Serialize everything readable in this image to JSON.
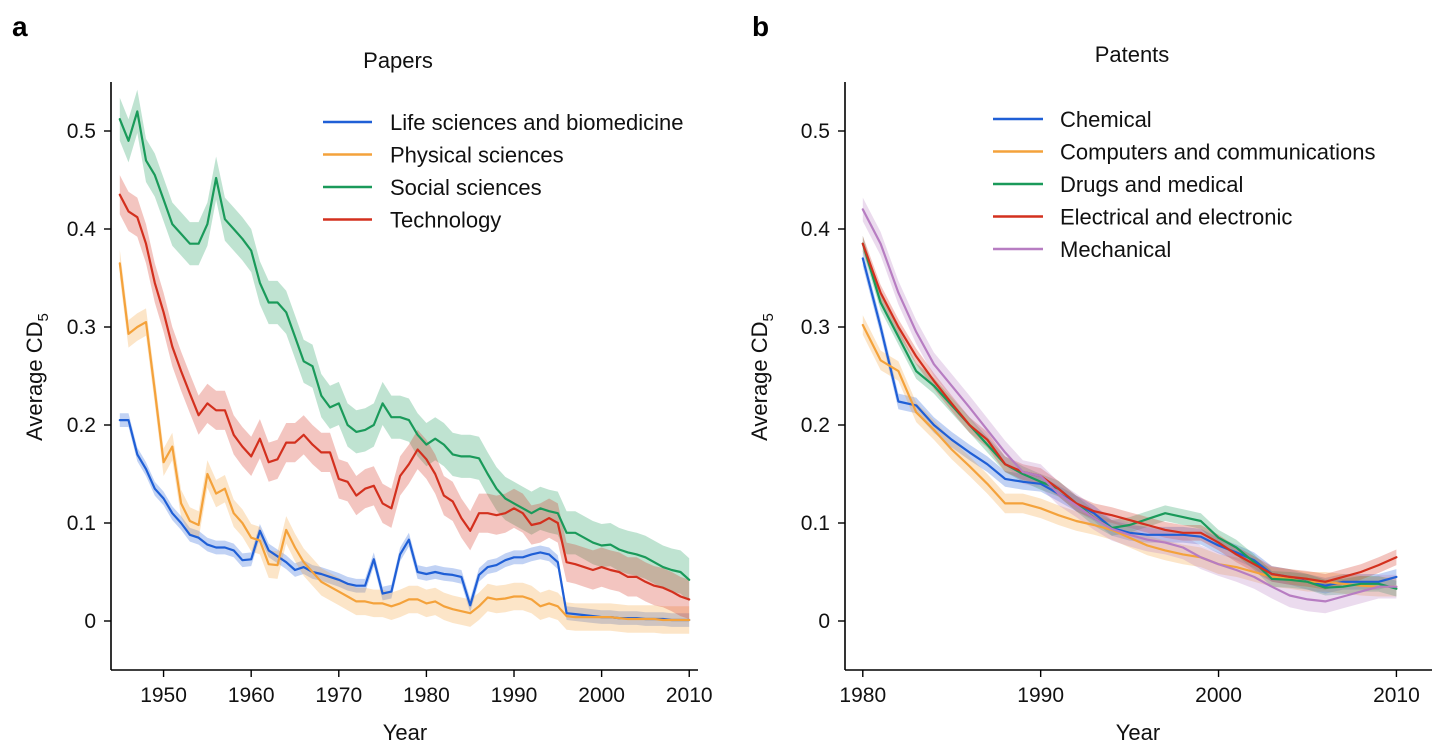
{
  "panel_letters": [
    "a",
    "b"
  ],
  "chart_data": [
    {
      "type": "line",
      "panel": "a",
      "title": "Papers",
      "xlabel": "Year",
      "ylabel": "Average CD",
      "ylabel_subscript": "5",
      "xlim": [
        1944,
        2011
      ],
      "ylim": [
        -0.05,
        0.55
      ],
      "xticks": [
        1950,
        1960,
        1970,
        1980,
        1990,
        2000,
        2010
      ],
      "yticks": [
        0,
        0.1,
        0.2,
        0.3,
        0.4,
        0.5
      ],
      "ytick_labels": [
        "0",
        "0.1",
        "0.2",
        "0.3",
        "0.4",
        "0.5"
      ],
      "legend_position": "top-right",
      "grid": false,
      "x": [
        1945,
        1946,
        1947,
        1948,
        1949,
        1950,
        1951,
        1952,
        1953,
        1954,
        1955,
        1956,
        1957,
        1958,
        1959,
        1960,
        1961,
        1962,
        1963,
        1964,
        1965,
        1966,
        1967,
        1968,
        1969,
        1970,
        1971,
        1972,
        1973,
        1974,
        1975,
        1976,
        1977,
        1978,
        1979,
        1980,
        1981,
        1982,
        1983,
        1984,
        1985,
        1986,
        1987,
        1988,
        1989,
        1990,
        1991,
        1992,
        1993,
        1994,
        1995,
        1996,
        1997,
        1998,
        1999,
        2000,
        2001,
        2002,
        2003,
        2004,
        2005,
        2006,
        2007,
        2008,
        2009,
        2010
      ],
      "series": [
        {
          "name": "Life sciences and biomedicine",
          "color": "#1f5fd6",
          "band": 0.007,
          "values": [
            0.205,
            0.205,
            0.17,
            0.155,
            0.135,
            0.125,
            0.11,
            0.1,
            0.088,
            0.085,
            0.078,
            0.075,
            0.075,
            0.072,
            0.062,
            0.063,
            0.092,
            0.072,
            0.066,
            0.06,
            0.052,
            0.055,
            0.05,
            0.048,
            0.045,
            0.042,
            0.038,
            0.036,
            0.036,
            0.063,
            0.028,
            0.03,
            0.068,
            0.083,
            0.05,
            0.048,
            0.05,
            0.048,
            0.047,
            0.045,
            0.016,
            0.047,
            0.055,
            0.057,
            0.062,
            0.065,
            0.065,
            0.068,
            0.07,
            0.068,
            0.06,
            0.008,
            0.007,
            0.006,
            0.005,
            0.004,
            0.004,
            0.003,
            0.003,
            0.003,
            0.002,
            0.002,
            0.002,
            0.001,
            0.001,
            0.001
          ]
        },
        {
          "name": "Physical sciences",
          "color": "#f4a23b",
          "band": 0.014,
          "values": [
            0.365,
            0.293,
            0.3,
            0.305,
            0.235,
            0.162,
            0.178,
            0.12,
            0.102,
            0.098,
            0.15,
            0.13,
            0.135,
            0.11,
            0.1,
            0.085,
            0.082,
            0.058,
            0.057,
            0.093,
            0.075,
            0.06,
            0.05,
            0.04,
            0.035,
            0.03,
            0.025,
            0.02,
            0.02,
            0.018,
            0.018,
            0.015,
            0.018,
            0.022,
            0.022,
            0.018,
            0.02,
            0.015,
            0.012,
            0.01,
            0.008,
            0.015,
            0.024,
            0.022,
            0.023,
            0.025,
            0.025,
            0.022,
            0.015,
            0.018,
            0.015,
            0.005,
            0.004,
            0.004,
            0.004,
            0.004,
            0.004,
            0.003,
            0.002,
            0.002,
            0.002,
            0.002,
            0.001,
            0.001,
            0.001,
            0.001
          ]
        },
        {
          "name": "Social sciences",
          "color": "#1a9a5a",
          "band": 0.022,
          "values": [
            0.512,
            0.49,
            0.52,
            0.47,
            0.455,
            0.43,
            0.405,
            0.395,
            0.385,
            0.385,
            0.405,
            0.452,
            0.41,
            0.4,
            0.39,
            0.378,
            0.345,
            0.325,
            0.325,
            0.315,
            0.29,
            0.265,
            0.26,
            0.23,
            0.218,
            0.222,
            0.2,
            0.193,
            0.195,
            0.2,
            0.222,
            0.208,
            0.208,
            0.205,
            0.19,
            0.18,
            0.186,
            0.18,
            0.17,
            0.168,
            0.168,
            0.166,
            0.15,
            0.135,
            0.125,
            0.12,
            0.115,
            0.11,
            0.115,
            0.112,
            0.11,
            0.09,
            0.09,
            0.085,
            0.08,
            0.077,
            0.078,
            0.073,
            0.07,
            0.068,
            0.065,
            0.06,
            0.055,
            0.052,
            0.05,
            0.042
          ]
        },
        {
          "name": "Technology",
          "color": "#d3301e",
          "band": 0.02,
          "values": [
            0.435,
            0.418,
            0.412,
            0.385,
            0.345,
            0.315,
            0.28,
            0.255,
            0.232,
            0.21,
            0.222,
            0.215,
            0.215,
            0.19,
            0.178,
            0.168,
            0.186,
            0.162,
            0.165,
            0.182,
            0.182,
            0.19,
            0.18,
            0.172,
            0.172,
            0.145,
            0.142,
            0.128,
            0.135,
            0.138,
            0.12,
            0.115,
            0.148,
            0.16,
            0.175,
            0.165,
            0.15,
            0.128,
            0.122,
            0.105,
            0.092,
            0.11,
            0.11,
            0.108,
            0.11,
            0.115,
            0.11,
            0.098,
            0.1,
            0.105,
            0.1,
            0.06,
            0.058,
            0.055,
            0.052,
            0.055,
            0.052,
            0.05,
            0.045,
            0.045,
            0.04,
            0.036,
            0.034,
            0.03,
            0.025,
            0.022
          ]
        }
      ]
    },
    {
      "type": "line",
      "panel": "b",
      "title": "Patents",
      "xlabel": "Year",
      "ylabel": "Average CD",
      "ylabel_subscript": "5",
      "xlim": [
        1979,
        2012
      ],
      "ylim": [
        -0.05,
        0.55
      ],
      "xticks": [
        1980,
        1990,
        2000,
        2010
      ],
      "yticks": [
        0,
        0.1,
        0.2,
        0.3,
        0.4,
        0.5
      ],
      "ytick_labels": [
        "0",
        "0.1",
        "0.2",
        "0.3",
        "0.4",
        "0.5"
      ],
      "legend_position": "top-center",
      "grid": false,
      "x": [
        1980,
        1981,
        1982,
        1983,
        1984,
        1985,
        1986,
        1987,
        1988,
        1989,
        1990,
        1991,
        1992,
        1993,
        1994,
        1995,
        1996,
        1997,
        1998,
        1999,
        2000,
        2001,
        2002,
        2003,
        2004,
        2005,
        2006,
        2007,
        2008,
        2009,
        2010
      ],
      "series": [
        {
          "name": "Chemical",
          "color": "#1f5fd6",
          "band": 0.008,
          "values": [
            0.37,
            0.3,
            0.224,
            0.22,
            0.2,
            0.185,
            0.172,
            0.16,
            0.145,
            0.142,
            0.14,
            0.13,
            0.12,
            0.11,
            0.095,
            0.09,
            0.088,
            0.088,
            0.088,
            0.086,
            0.077,
            0.07,
            0.062,
            0.048,
            0.045,
            0.04,
            0.036,
            0.04,
            0.04,
            0.04,
            0.045
          ]
        },
        {
          "name": "Computers and communications",
          "color": "#f4a23b",
          "band": 0.01,
          "values": [
            0.302,
            0.266,
            0.255,
            0.213,
            0.195,
            0.175,
            0.158,
            0.14,
            0.12,
            0.12,
            0.115,
            0.108,
            0.102,
            0.098,
            0.093,
            0.085,
            0.077,
            0.072,
            0.068,
            0.065,
            0.058,
            0.055,
            0.05,
            0.045,
            0.043,
            0.04,
            0.04,
            0.038,
            0.036,
            0.035,
            0.035
          ]
        },
        {
          "name": "Drugs and medical",
          "color": "#1a9a5a",
          "band": 0.008,
          "values": [
            0.385,
            0.325,
            0.29,
            0.255,
            0.24,
            0.22,
            0.2,
            0.18,
            0.16,
            0.15,
            0.142,
            0.135,
            0.12,
            0.105,
            0.095,
            0.098,
            0.104,
            0.11,
            0.106,
            0.102,
            0.085,
            0.075,
            0.06,
            0.043,
            0.042,
            0.04,
            0.034,
            0.035,
            0.038,
            0.038,
            0.033
          ]
        },
        {
          "name": "Electrical and electronic",
          "color": "#d3301e",
          "band": 0.008,
          "values": [
            0.385,
            0.335,
            0.3,
            0.27,
            0.245,
            0.222,
            0.2,
            0.185,
            0.16,
            0.152,
            0.148,
            0.135,
            0.12,
            0.112,
            0.108,
            0.103,
            0.098,
            0.093,
            0.09,
            0.09,
            0.08,
            0.068,
            0.058,
            0.048,
            0.045,
            0.043,
            0.04,
            0.045,
            0.05,
            0.057,
            0.065
          ]
        },
        {
          "name": "Mechanical",
          "color": "#b77dc2",
          "band": 0.012,
          "values": [
            0.42,
            0.385,
            0.335,
            0.295,
            0.262,
            0.24,
            0.218,
            0.195,
            0.172,
            0.152,
            0.148,
            0.13,
            0.118,
            0.105,
            0.094,
            0.088,
            0.083,
            0.08,
            0.075,
            0.065,
            0.058,
            0.052,
            0.045,
            0.035,
            0.026,
            0.022,
            0.02,
            0.025,
            0.03,
            0.035,
            0.035
          ]
        }
      ]
    }
  ]
}
